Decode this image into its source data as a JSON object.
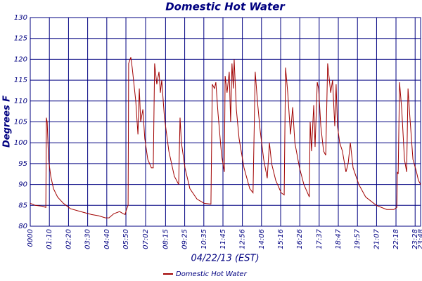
{
  "chart_data": {
    "type": "line",
    "title": "Domestic Hot Water",
    "xlabel": "04/22/13 (EST)",
    "ylabel": "Degrees F",
    "x": [
      0,
      18,
      44,
      57,
      59,
      62,
      67,
      75,
      85,
      100,
      121,
      147,
      185,
      224,
      250,
      275,
      288,
      306,
      327,
      340,
      347,
      352,
      358,
      360,
      368,
      373,
      386,
      394,
      399,
      404,
      412,
      419,
      430,
      443,
      450,
      455,
      463,
      471,
      476,
      481,
      491,
      507,
      527,
      543,
      548,
      553,
      566,
      584,
      610,
      636,
      661,
      666,
      674,
      679,
      687,
      700,
      710,
      713,
      720,
      728,
      733,
      738,
      743,
      746,
      754,
      764,
      782,
      803,
      815,
      823,
      831,
      841,
      854,
      867,
      875,
      883,
      898,
      918,
      929,
      934,
      942,
      952,
      960,
      968,
      985,
      1001,
      1021,
      1024,
      1029,
      1037,
      1042,
      1050,
      1055,
      1063,
      1073,
      1081,
      1088,
      1099,
      1106,
      1114,
      1119,
      1124,
      1132,
      1142,
      1155,
      1163,
      1171,
      1181,
      1202,
      1227,
      1266,
      1304,
      1330,
      1341,
      1343,
      1346,
      1351,
      1359,
      1369,
      1377,
      1382,
      1389,
      1400,
      1413,
      1420,
      1428
    ],
    "series": [
      {
        "name": "Domestic Hot Water",
        "color": "#a00000",
        "values": [
          85.5,
          85,
          84.8,
          84.5,
          106,
          105,
          96,
          92,
          89,
          87,
          85.5,
          84.2,
          83.5,
          82.8,
          82.5,
          82,
          82,
          83,
          83.5,
          83,
          82.8,
          84,
          85,
          119,
          120.5,
          118,
          110,
          102,
          113,
          105,
          108,
          101,
          96,
          94,
          94,
          119,
          114,
          117,
          112,
          115,
          106,
          98,
          92,
          90,
          106,
          100,
          94,
          89,
          86.5,
          85.5,
          85.3,
          114,
          113,
          114.5,
          107,
          97,
          93,
          116,
          112,
          117,
          105,
          119,
          113,
          120,
          108,
          101,
          94,
          89,
          88,
          117,
          110,
          103,
          96,
          91.5,
          100,
          95,
          91,
          88,
          87.5,
          118,
          112,
          102,
          108.5,
          100,
          94,
          90,
          87,
          105,
          98,
          109,
          99,
          114.5,
          113,
          104,
          98,
          97,
          119,
          112,
          115,
          104,
          114,
          104,
          100,
          98,
          93,
          95,
          100,
          94,
          90,
          87,
          85,
          84,
          84,
          84.5,
          93,
          92.5,
          114.5,
          108,
          96,
          93,
          113,
          106,
          96,
          93,
          91,
          90
        ]
      }
    ],
    "xlim": [
      0,
      1428
    ],
    "xticks": [
      {
        "value": 0,
        "label": "0000"
      },
      {
        "value": 70,
        "label": "01:10"
      },
      {
        "value": 140,
        "label": "02:20"
      },
      {
        "value": 210,
        "label": "03:30"
      },
      {
        "value": 280,
        "label": "04:40"
      },
      {
        "value": 350,
        "label": "05:50"
      },
      {
        "value": 422,
        "label": "07:02"
      },
      {
        "value": 495,
        "label": "08:15"
      },
      {
        "value": 565,
        "label": "09:25"
      },
      {
        "value": 635,
        "label": "10:35"
      },
      {
        "value": 705,
        "label": "11:45"
      },
      {
        "value": 776,
        "label": "12:56"
      },
      {
        "value": 846,
        "label": "14:06"
      },
      {
        "value": 916,
        "label": "15:16"
      },
      {
        "value": 986,
        "label": "16:26"
      },
      {
        "value": 1057,
        "label": "17:37"
      },
      {
        "value": 1127,
        "label": "18:47"
      },
      {
        "value": 1197,
        "label": "19:57"
      },
      {
        "value": 1267,
        "label": "21:07"
      },
      {
        "value": 1338,
        "label": "22:18"
      },
      {
        "value": 1408,
        "label": "23:28"
      },
      {
        "value": 1428,
        "label": "23:48"
      }
    ],
    "ylim": [
      80,
      130
    ],
    "yticks": [
      80,
      85,
      90,
      95,
      100,
      105,
      110,
      115,
      120,
      125,
      130
    ],
    "grid": true,
    "grid_color": "#000080",
    "legend": "bottom"
  }
}
